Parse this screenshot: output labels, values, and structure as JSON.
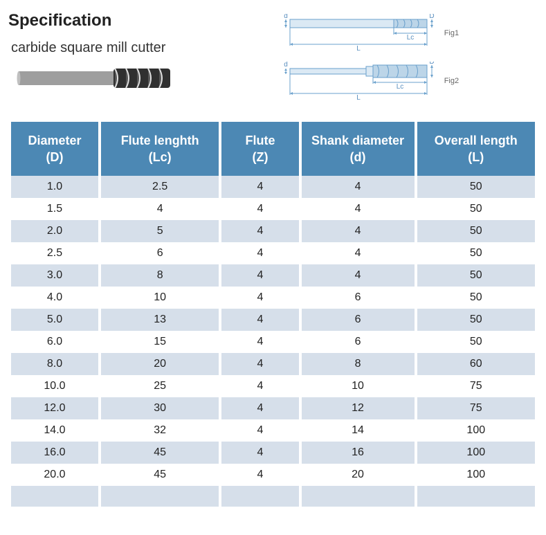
{
  "header": {
    "title": "Specification",
    "subtitle": "carbide square mill cutter",
    "fig1_label": "Fig1",
    "fig2_label": "Fig2",
    "dim_d_label": "d",
    "dim_D_label": "D",
    "dim_L_label": "L",
    "dim_Lc_label": "Lc"
  },
  "table": {
    "type": "table",
    "header_bg": "#4c88b4",
    "header_fg": "#ffffff",
    "row_even_bg": "#d6dfea",
    "row_odd_bg": "#ffffff",
    "text_color": "#222222",
    "font_size_header": 18,
    "font_size_cell": 16,
    "col_widths_pct": [
      17,
      23,
      15,
      22,
      23
    ],
    "columns": [
      "Diameter (D)",
      "Flute lenghth (Lc)",
      "Flute (Z)",
      "Shank diameter (d)",
      "Overall length (L)"
    ],
    "rows": [
      [
        "1.0",
        "2.5",
        "4",
        "4",
        "50"
      ],
      [
        "1.5",
        "4",
        "4",
        "4",
        "50"
      ],
      [
        "2.0",
        "5",
        "4",
        "4",
        "50"
      ],
      [
        "2.5",
        "6",
        "4",
        "4",
        "50"
      ],
      [
        "3.0",
        "8",
        "4",
        "4",
        "50"
      ],
      [
        "4.0",
        "10",
        "4",
        "6",
        "50"
      ],
      [
        "5.0",
        "13",
        "4",
        "6",
        "50"
      ],
      [
        "6.0",
        "15",
        "4",
        "6",
        "50"
      ],
      [
        "8.0",
        "20",
        "4",
        "8",
        "60"
      ],
      [
        "10.0",
        "25",
        "4",
        "10",
        "75"
      ],
      [
        "12.0",
        "30",
        "4",
        "12",
        "75"
      ],
      [
        "14.0",
        "32",
        "4",
        "14",
        "100"
      ],
      [
        "16.0",
        "45",
        "4",
        "16",
        "100"
      ],
      [
        "20.0",
        "45",
        "4",
        "20",
        "100"
      ]
    ]
  }
}
